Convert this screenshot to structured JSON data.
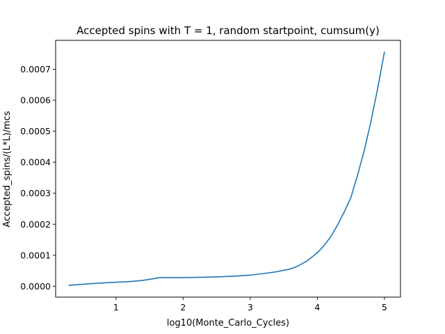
{
  "chart_data": {
    "type": "line",
    "title": "Accepted spins with T = 1, random startpoint, cumsum(y)",
    "xlabel": "log10(Monte_Carlo_Cycles)",
    "ylabel": "Accepted_spins/(L*L)/mcs",
    "xlim": [
      0.1,
      5.24
    ],
    "ylim": [
      -3.5e-05,
      0.000793
    ],
    "xticks": [
      1,
      2,
      3,
      4,
      5
    ],
    "xtick_labels": [
      "1",
      "2",
      "3",
      "4",
      "5"
    ],
    "yticks": [
      0,
      0.0001,
      0.0002,
      0.0003,
      0.0004,
      0.0005,
      0.0006,
      0.0007
    ],
    "ytick_labels": [
      "0.0000",
      "0.0001",
      "0.0002",
      "0.0003",
      "0.0004",
      "0.0005",
      "0.0006",
      "0.0007"
    ],
    "grid": false,
    "series": [
      {
        "color": "#1f77b4",
        "x": [
          0.3,
          0.6,
          0.9,
          1.2,
          1.4,
          1.55,
          1.65,
          1.8,
          2.0,
          2.3,
          2.6,
          2.8,
          3.0,
          3.2,
          3.4,
          3.6,
          3.7,
          3.85,
          4.0,
          4.1,
          4.2,
          4.3,
          4.4,
          4.5,
          4.6,
          4.7,
          4.8,
          4.9,
          5.0
        ],
        "y": [
          3e-06,
          8e-06,
          1.2e-05,
          1.5e-05,
          1.9e-05,
          2.4e-05,
          2.8e-05,
          2.8e-05,
          2.8e-05,
          2.9e-05,
          3.1e-05,
          3.3e-05,
          3.6e-05,
          4.1e-05,
          4.7e-05,
          5.6e-05,
          6.4e-05,
          8.2e-05,
          0.000108,
          0.000131,
          0.00016,
          0.000197,
          0.000239,
          0.000286,
          0.000358,
          0.000438,
          0.000532,
          0.000638,
          0.000755
        ]
      }
    ]
  }
}
